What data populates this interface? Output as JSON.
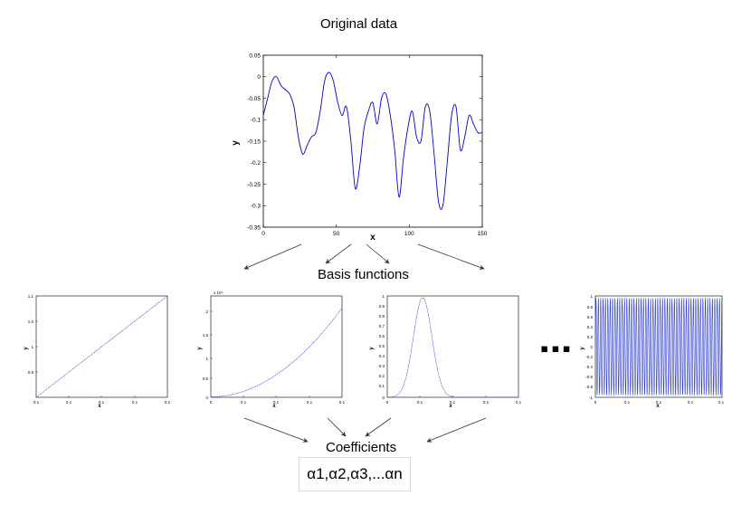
{
  "title": "Original data",
  "basis_label": "Basis functions",
  "coefficients_label": "Coefficients",
  "coefficients_value": "α1,α2,α3,...αn",
  "ellipsis": "▪▪▪",
  "main_plot": {
    "xlabel": "x",
    "ylabel": "y",
    "x_ticks": [
      "0",
      "50",
      "100",
      "150"
    ],
    "y_ticks": [
      "0.05",
      "0",
      "-0.05",
      "-0.1",
      "-0.15",
      "-0.2",
      "-0.25",
      "-0.3",
      "-0.35"
    ],
    "line_color": "#0000cc"
  },
  "small_plots": [
    {
      "xlabel": "x",
      "ylabel": "y"
    },
    {
      "xlabel": "x",
      "ylabel": "y",
      "multiplier": "x 10⁴"
    },
    {
      "xlabel": "x",
      "ylabel": "y"
    },
    {
      "xlabel": "x",
      "ylabel": "y"
    }
  ],
  "chart_data": {
    "type": "line",
    "xlim": [
      0,
      150
    ],
    "ylim": [
      -0.35,
      0.05
    ],
    "x": [
      0,
      3,
      6,
      9,
      12,
      15,
      18,
      21,
      24,
      27,
      30,
      33,
      36,
      39,
      42,
      45,
      48,
      51,
      54,
      57,
      60,
      63,
      66,
      69,
      72,
      75,
      78,
      81,
      84,
      87,
      90,
      93,
      96,
      99,
      102,
      105,
      108,
      111,
      114,
      117,
      120,
      123,
      126,
      129,
      132,
      135,
      138,
      141,
      144,
      147,
      150
    ],
    "y": [
      -0.09,
      -0.05,
      -0.01,
      0.0,
      -0.02,
      -0.03,
      -0.04,
      -0.07,
      -0.14,
      -0.18,
      -0.16,
      -0.14,
      -0.13,
      -0.08,
      -0.01,
      0.01,
      -0.01,
      -0.06,
      -0.09,
      -0.07,
      -0.15,
      -0.26,
      -0.21,
      -0.12,
      -0.08,
      -0.06,
      -0.11,
      -0.05,
      -0.04,
      -0.09,
      -0.17,
      -0.28,
      -0.19,
      -0.12,
      -0.08,
      -0.14,
      -0.15,
      -0.07,
      -0.08,
      -0.18,
      -0.29,
      -0.3,
      -0.2,
      -0.09,
      -0.07,
      -0.17,
      -0.14,
      -0.09,
      -0.11,
      -0.13,
      -0.13
    ]
  }
}
